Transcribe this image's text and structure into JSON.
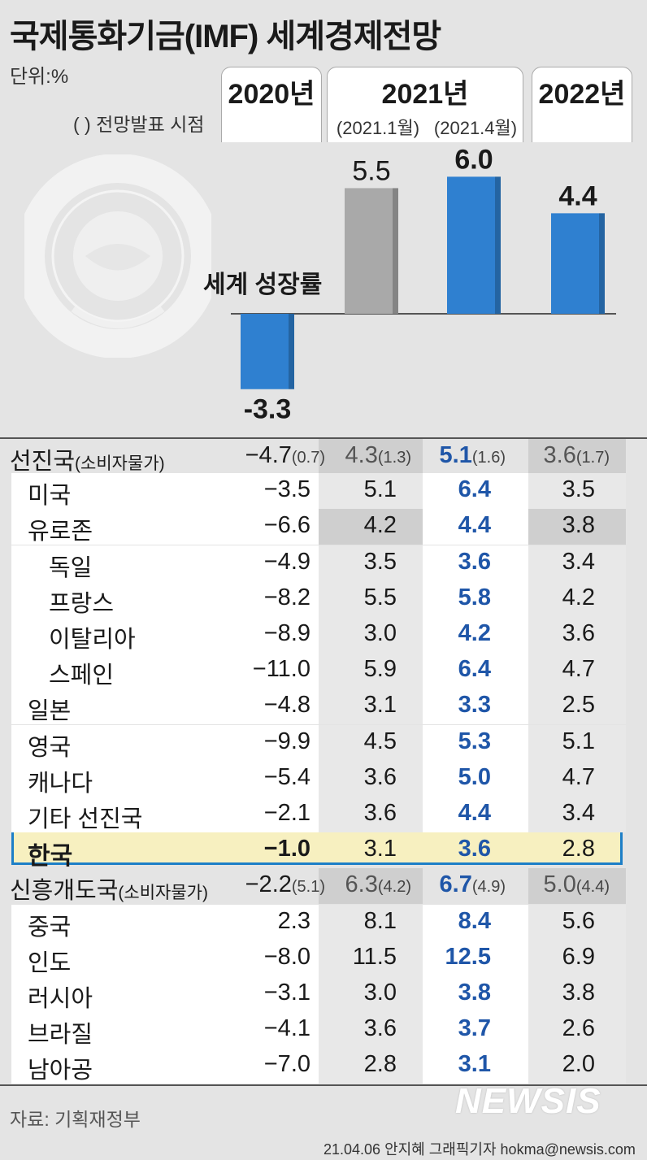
{
  "title": "국제통화기금(IMF) 세계경제전망",
  "unit_label": "단위:%",
  "note_label": "( ) 전망발표 시점",
  "headers": {
    "y2020": "2020년",
    "y2021": "2021년",
    "y2021_jan": "(2021.1월)",
    "y2021_apr": "(2021.4월)",
    "y2022": "2022년"
  },
  "logo_icon": "imf-seal-icon",
  "colors": {
    "blue": "#2f80d0",
    "gray": "#a9a9a9",
    "highlight": "#f7f0c0",
    "highlight_border": "#1d7fc7",
    "blue_text": "#1f56a8"
  },
  "chart_data": {
    "type": "bar",
    "title": "세계 성장률",
    "categories": [
      "2020년",
      "2021년 (2021.1월)",
      "2021년 (2021.4월)",
      "2022년"
    ],
    "values": [
      -3.3,
      5.5,
      6.0,
      4.4
    ],
    "value_labels": [
      "-3.3",
      "5.5",
      "6.0",
      "4.4"
    ],
    "bar_colors": [
      "#2f80d0",
      "#a9a9a9",
      "#2f80d0",
      "#2f80d0"
    ]
  },
  "table": {
    "columns": [
      "2020년",
      "2021년 (2021.1월)",
      "2021년 (2021.4월)",
      "2022년"
    ],
    "rows": [
      {
        "name": "선진국",
        "sub": "(소비자물가)",
        "indent": 0,
        "group": true,
        "v2020": "−4.7",
        "v2020_p": "(0.7)",
        "v21a": "4.3",
        "v21a_p": "(1.3)",
        "v21b": "5.1",
        "v21b_p": "(1.6)",
        "v22": "3.6",
        "v22_p": "(1.7)"
      },
      {
        "name": "미국",
        "indent": 1,
        "v2020": "−3.5",
        "v21a": "5.1",
        "v21b": "6.4",
        "v22": "3.5"
      },
      {
        "name": "유로존",
        "indent": 1,
        "band": true,
        "v2020": "−6.6",
        "v21a": "4.2",
        "v21b": "4.4",
        "v22": "3.8"
      },
      {
        "name": "독일",
        "indent": 2,
        "v2020": "−4.9",
        "v21a": "3.5",
        "v21b": "3.6",
        "v22": "3.4"
      },
      {
        "name": "프랑스",
        "indent": 2,
        "v2020": "−8.2",
        "v21a": "5.5",
        "v21b": "5.8",
        "v22": "4.2"
      },
      {
        "name": "이탈리아",
        "indent": 2,
        "v2020": "−8.9",
        "v21a": "3.0",
        "v21b": "4.2",
        "v22": "3.6"
      },
      {
        "name": "스페인",
        "indent": 2,
        "v2020": "−11.0",
        "v21a": "5.9",
        "v21b": "6.4",
        "v22": "4.7"
      },
      {
        "name": "일본",
        "indent": 1,
        "v2020": "−4.8",
        "v21a": "3.1",
        "v21b": "3.3",
        "v22": "2.5"
      },
      {
        "name": "영국",
        "indent": 1,
        "v2020": "−9.9",
        "v21a": "4.5",
        "v21b": "5.3",
        "v22": "5.1"
      },
      {
        "name": "캐나다",
        "indent": 1,
        "v2020": "−5.4",
        "v21a": "3.6",
        "v21b": "5.0",
        "v22": "4.7"
      },
      {
        "name": "기타 선진국",
        "indent": 1,
        "v2020": "−2.1",
        "v21a": "3.6",
        "v21b": "4.4",
        "v22": "3.4"
      },
      {
        "name": "한국",
        "indent": 1,
        "korea": true,
        "v2020": "−1.0",
        "v21a": "3.1",
        "v21b": "3.6",
        "v22": "2.8"
      },
      {
        "name": "신흥개도국",
        "sub": "(소비자물가)",
        "indent": 0,
        "group": true,
        "v2020": "−2.2",
        "v2020_p": "(5.1)",
        "v21a": "6.3",
        "v21a_p": "(4.2)",
        "v21b": "6.7",
        "v21b_p": "(4.9)",
        "v22": "5.0",
        "v22_p": "(4.4)"
      },
      {
        "name": "중국",
        "indent": 1,
        "v2020": "2.3",
        "v21a": "8.1",
        "v21b": "8.4",
        "v22": "5.6"
      },
      {
        "name": "인도",
        "indent": 1,
        "v2020": "−8.0",
        "v21a": "11.5",
        "v21b": "12.5",
        "v22": "6.9"
      },
      {
        "name": "러시아",
        "indent": 1,
        "v2020": "−3.1",
        "v21a": "3.0",
        "v21b": "3.8",
        "v22": "3.8"
      },
      {
        "name": "브라질",
        "indent": 1,
        "v2020": "−4.1",
        "v21a": "3.6",
        "v21b": "3.7",
        "v22": "2.6"
      },
      {
        "name": "남아공",
        "indent": 1,
        "v2020": "−7.0",
        "v21a": "2.8",
        "v21b": "3.1",
        "v22": "2.0"
      }
    ]
  },
  "source": "자료: 기획재정부",
  "credit": "21.04.06 안지혜 그래픽기자 hokma@newsis.com",
  "watermark": "NEWSIS"
}
